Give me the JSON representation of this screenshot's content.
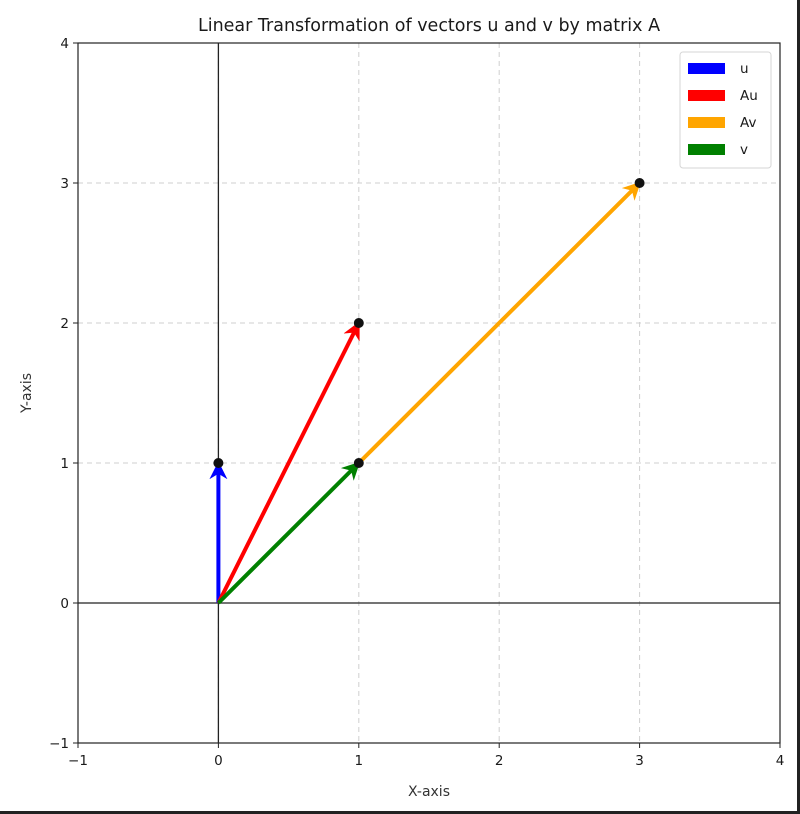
{
  "chart_data": {
    "type": "quiver",
    "title": "Linear Transformation of vectors u and v by matrix A",
    "xlabel": "X-axis",
    "ylabel": "Y-axis",
    "xlim": [
      -1,
      4
    ],
    "ylim": [
      -1,
      4
    ],
    "xticks": [
      "−1",
      "0",
      "1",
      "2",
      "3",
      "4"
    ],
    "yticks": [
      "−1",
      "0",
      "1",
      "2",
      "3",
      "4"
    ],
    "grid": true,
    "grid_style": "dashed",
    "legend_position": "upper right",
    "series": [
      {
        "name": "u",
        "color": "#0000ff",
        "origin": [
          0,
          0
        ],
        "end": [
          0,
          1
        ]
      },
      {
        "name": "Au",
        "color": "#ff0000",
        "origin": [
          0,
          0
        ],
        "end": [
          1,
          2
        ]
      },
      {
        "name": "Av",
        "color": "#ffa500",
        "origin": [
          1,
          1
        ],
        "end": [
          3,
          3
        ]
      },
      {
        "name": "v",
        "color": "#008000",
        "origin": [
          0,
          0
        ],
        "end": [
          1,
          1
        ]
      }
    ],
    "points": [
      [
        0,
        1
      ],
      [
        1,
        2
      ],
      [
        1,
        1
      ],
      [
        3,
        3
      ]
    ],
    "axes_lines": {
      "x0": true,
      "y0": true
    }
  }
}
